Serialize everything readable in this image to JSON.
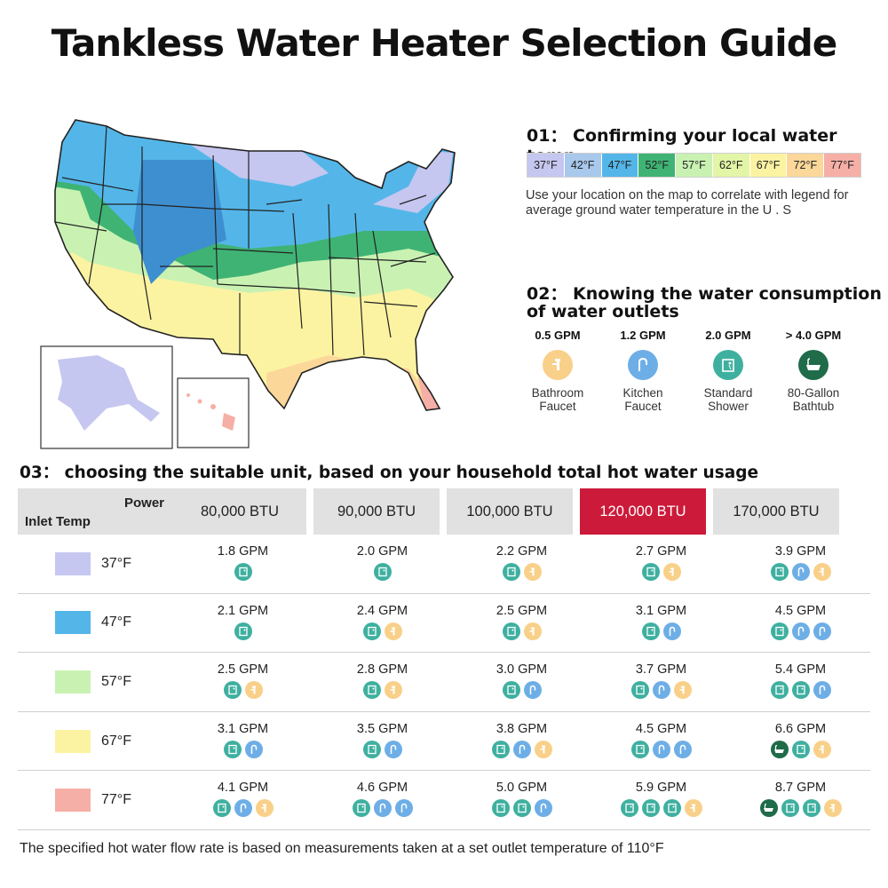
{
  "title": "Tankless Water Heater Selection Guide",
  "section1": {
    "heading": "01： Confirming your local water temp",
    "legend": [
      {
        "label": "37°F",
        "color": "#c5c7f0"
      },
      {
        "label": "42°F",
        "color": "#a8c8ec"
      },
      {
        "label": "47°F",
        "color": "#54b6e8"
      },
      {
        "label": "52°F",
        "color": "#3fb374"
      },
      {
        "label": "57°F",
        "color": "#c9f2b2"
      },
      {
        "label": "62°F",
        "color": "#e3f5a6"
      },
      {
        "label": "67°F",
        "color": "#fcf3a2"
      },
      {
        "label": "72°F",
        "color": "#fbd79a"
      },
      {
        "label": "77°F",
        "color": "#f6afa6"
      }
    ],
    "description": "Use your location on the map to correlate with legend for average ground water temperature in the U . S"
  },
  "section2": {
    "heading_line1": "02： Knowing the water consumption",
    "heading_line2": "of water outlets",
    "outlets": [
      {
        "gpm": "0.5 GPM",
        "label_line1": "Bathroom",
        "label_line2": "Faucet",
        "icon": "faucet-icon",
        "color": "#f9d089"
      },
      {
        "gpm": "1.2 GPM",
        "label_line1": "Kitchen",
        "label_line2": "Faucet",
        "icon": "kitchen-faucet-icon",
        "color": "#6eaee6"
      },
      {
        "gpm": "2.0 GPM",
        "label_line1": "Standard",
        "label_line2": "Shower",
        "icon": "shower-icon",
        "color": "#3fb0a0"
      },
      {
        "gpm": "> 4.0 GPM",
        "label_line1": "80-Gallon",
        "label_line2": "Bathtub",
        "icon": "bathtub-icon",
        "color": "#1f6b4a"
      }
    ]
  },
  "section3": {
    "heading": "03： choosing the suitable unit, based on your household total hot water usage",
    "corner_power": "Power",
    "corner_inlet": "Inlet Temp",
    "columns": [
      "80,000 BTU",
      "90,000 BTU",
      "100,000 BTU",
      "120,000 BTU",
      "170,000 BTU"
    ],
    "highlight_color": "#cc1b3a",
    "rows": [
      {
        "temp": "37°F",
        "color": "#c5c7f0",
        "cells": [
          {
            "gpm": "1.8 GPM",
            "icons": [
              "shower"
            ]
          },
          {
            "gpm": "2.0 GPM",
            "icons": [
              "shower"
            ]
          },
          {
            "gpm": "2.2 GPM",
            "icons": [
              "shower",
              "bath"
            ]
          },
          {
            "gpm": "2.7 GPM",
            "icons": [
              "shower",
              "bath"
            ]
          },
          {
            "gpm": "3.9 GPM",
            "icons": [
              "shower",
              "kitchen",
              "bath"
            ]
          }
        ]
      },
      {
        "temp": "47°F",
        "color": "#54b6e8",
        "cells": [
          {
            "gpm": "2.1 GPM",
            "icons": [
              "shower"
            ]
          },
          {
            "gpm": "2.4 GPM",
            "icons": [
              "shower",
              "bath"
            ]
          },
          {
            "gpm": "2.5 GPM",
            "icons": [
              "shower",
              "bath"
            ]
          },
          {
            "gpm": "3.1 GPM",
            "icons": [
              "shower",
              "kitchen"
            ]
          },
          {
            "gpm": "4.5 GPM",
            "icons": [
              "shower",
              "kitchen",
              "kitchen"
            ]
          }
        ]
      },
      {
        "temp": "57°F",
        "color": "#c9f2b2",
        "cells": [
          {
            "gpm": "2.5 GPM",
            "icons": [
              "shower",
              "bath"
            ]
          },
          {
            "gpm": "2.8 GPM",
            "icons": [
              "shower",
              "bath"
            ]
          },
          {
            "gpm": "3.0 GPM",
            "icons": [
              "shower",
              "kitchen"
            ]
          },
          {
            "gpm": "3.7 GPM",
            "icons": [
              "shower",
              "kitchen",
              "bath"
            ]
          },
          {
            "gpm": "5.4 GPM",
            "icons": [
              "shower",
              "shower",
              "kitchen"
            ]
          }
        ]
      },
      {
        "temp": "67°F",
        "color": "#fcf3a2",
        "cells": [
          {
            "gpm": "3.1 GPM",
            "icons": [
              "shower",
              "kitchen"
            ]
          },
          {
            "gpm": "3.5 GPM",
            "icons": [
              "shower",
              "kitchen"
            ]
          },
          {
            "gpm": "3.8 GPM",
            "icons": [
              "shower",
              "kitchen",
              "bath"
            ]
          },
          {
            "gpm": "4.5 GPM",
            "icons": [
              "shower",
              "kitchen",
              "kitchen"
            ]
          },
          {
            "gpm": "6.6 GPM",
            "icons": [
              "tub",
              "shower",
              "bath"
            ]
          }
        ]
      },
      {
        "temp": "77°F",
        "color": "#f6afa6",
        "cells": [
          {
            "gpm": "4.1 GPM",
            "icons": [
              "shower",
              "kitchen",
              "bath"
            ]
          },
          {
            "gpm": "4.6 GPM",
            "icons": [
              "shower",
              "kitchen",
              "kitchen"
            ]
          },
          {
            "gpm": "5.0 GPM",
            "icons": [
              "shower",
              "shower",
              "kitchen"
            ]
          },
          {
            "gpm": "5.9 GPM",
            "icons": [
              "shower",
              "shower",
              "shower",
              "bath"
            ]
          },
          {
            "gpm": "8.7 GPM",
            "icons": [
              "tub",
              "shower",
              "shower",
              "bath"
            ]
          }
        ]
      }
    ]
  },
  "icon_colors": {
    "shower": "#3fb0a0",
    "kitchen": "#6eaee6",
    "bath": "#f9d089",
    "tub": "#1f6b4a"
  },
  "footnote": "The specified hot water flow rate is based on measurements taken at a set outlet temperature of 110°F"
}
